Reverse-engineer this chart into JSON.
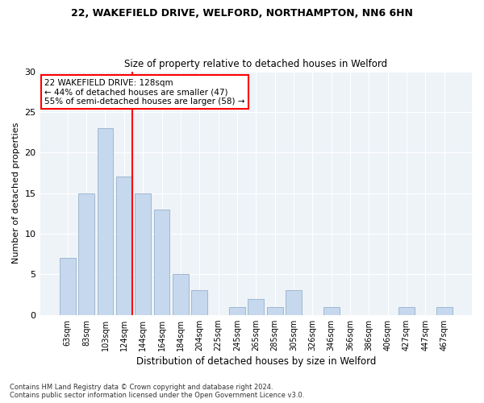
{
  "title1": "22, WAKEFIELD DRIVE, WELFORD, NORTHAMPTON, NN6 6HN",
  "title2": "Size of property relative to detached houses in Welford",
  "xlabel": "Distribution of detached houses by size in Welford",
  "ylabel": "Number of detached properties",
  "bar_labels": [
    "63sqm",
    "83sqm",
    "103sqm",
    "124sqm",
    "144sqm",
    "164sqm",
    "184sqm",
    "204sqm",
    "225sqm",
    "245sqm",
    "265sqm",
    "285sqm",
    "305sqm",
    "326sqm",
    "346sqm",
    "366sqm",
    "386sqm",
    "406sqm",
    "427sqm",
    "447sqm",
    "467sqm"
  ],
  "bar_values": [
    7,
    15,
    23,
    17,
    15,
    13,
    5,
    3,
    0,
    1,
    2,
    1,
    3,
    0,
    1,
    0,
    0,
    0,
    1,
    0,
    1
  ],
  "bar_color": "#c5d8ed",
  "bar_edge_color": "#a0b8d0",
  "vline_color": "red",
  "annotation_text": "22 WAKEFIELD DRIVE: 128sqm\n← 44% of detached houses are smaller (47)\n55% of semi-detached houses are larger (58) →",
  "annotation_box_color": "white",
  "annotation_box_edge": "red",
  "ylim": [
    0,
    30
  ],
  "yticks": [
    0,
    5,
    10,
    15,
    20,
    25,
    30
  ],
  "background_color": "#eef3f8",
  "grid_color": "white",
  "footer1": "Contains HM Land Registry data © Crown copyright and database right 2024.",
  "footer2": "Contains public sector information licensed under the Open Government Licence v3.0."
}
